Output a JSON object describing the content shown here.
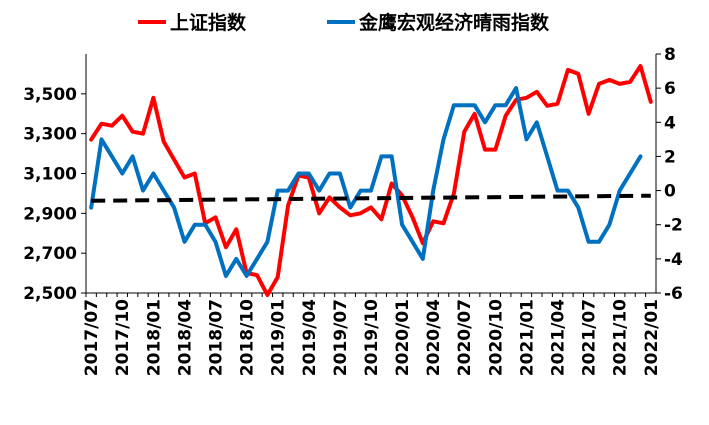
{
  "chart_data": {
    "type": "line",
    "legend_position": "top",
    "grid": false,
    "left_axis": {
      "ylim": [
        2500,
        3700
      ],
      "ticks": [
        "2,500",
        "2,700",
        "2,900",
        "3,100",
        "3,300",
        "3,500"
      ],
      "tick_values": [
        2500,
        2700,
        2900,
        3100,
        3300,
        3500
      ]
    },
    "right_axis": {
      "ylim": [
        -6,
        8
      ],
      "ticks": [
        "-6",
        "-4",
        "-2",
        "0",
        "2",
        "4",
        "6",
        "8"
      ],
      "tick_values": [
        -6,
        -4,
        -2,
        0,
        2,
        4,
        6,
        8
      ]
    },
    "x_tick_labels": [
      "2017/07",
      "2017/10",
      "2018/01",
      "2018/04",
      "2018/07",
      "2018/10",
      "2019/01",
      "2019/04",
      "2019/07",
      "2019/10",
      "2020/01",
      "2020/04",
      "2020/07",
      "2020/10",
      "2021/01",
      "2021/04",
      "2021/07",
      "2021/10",
      "2022/01"
    ],
    "series": [
      {
        "name": "上证指数",
        "color": "#FF0000",
        "axis": "left",
        "x": [
          "2017/07",
          "2017/08",
          "2017/09",
          "2017/10",
          "2017/11",
          "2017/12",
          "2018/01",
          "2018/02",
          "2018/03",
          "2018/04",
          "2018/05",
          "2018/06",
          "2018/07",
          "2018/08",
          "2018/09",
          "2018/10",
          "2018/11",
          "2018/12",
          "2019/01",
          "2019/02",
          "2019/03",
          "2019/04",
          "2019/05",
          "2019/06",
          "2019/07",
          "2019/08",
          "2019/09",
          "2019/10",
          "2019/11",
          "2019/12",
          "2020/01",
          "2020/02",
          "2020/03",
          "2020/04",
          "2020/05",
          "2020/06",
          "2020/07",
          "2020/08",
          "2020/09",
          "2020/10",
          "2020/11",
          "2020/12",
          "2021/01",
          "2021/02",
          "2021/03",
          "2021/04",
          "2021/05",
          "2021/06",
          "2021/07",
          "2021/08",
          "2021/09",
          "2021/10",
          "2021/11",
          "2021/12",
          "2022/01"
        ],
        "values": [
          3270,
          3350,
          3340,
          3390,
          3310,
          3300,
          3480,
          3260,
          3170,
          3080,
          3100,
          2850,
          2880,
          2730,
          2820,
          2600,
          2590,
          2490,
          2580,
          2940,
          3090,
          3080,
          2900,
          2980,
          2930,
          2890,
          2900,
          2930,
          2870,
          3050,
          2990,
          2880,
          2750,
          2860,
          2850,
          3000,
          3310,
          3400,
          3220,
          3220,
          3390,
          3470,
          3480,
          3510,
          3440,
          3450,
          3620,
          3600,
          3400,
          3550,
          3570,
          3550,
          3560,
          3640,
          3460
        ]
      },
      {
        "name": "金鹰宏观经济晴雨指数",
        "color": "#0070C0",
        "axis": "right",
        "x": [
          "2017/07",
          "2017/08",
          "2017/09",
          "2017/10",
          "2017/11",
          "2017/12",
          "2018/01",
          "2018/02",
          "2018/03",
          "2018/04",
          "2018/05",
          "2018/06",
          "2018/07",
          "2018/08",
          "2018/09",
          "2018/10",
          "2018/11",
          "2018/12",
          "2019/01",
          "2019/02",
          "2019/03",
          "2019/04",
          "2019/05",
          "2019/06",
          "2019/07",
          "2019/08",
          "2019/09",
          "2019/10",
          "2019/11",
          "2019/12",
          "2020/01",
          "2020/02",
          "2020/03",
          "2020/04",
          "2020/05",
          "2020/06",
          "2020/07",
          "2020/08",
          "2020/09",
          "2020/10",
          "2020/11",
          "2020/12",
          "2021/01",
          "2021/02",
          "2021/03",
          "2021/04",
          "2021/05",
          "2021/06",
          "2021/07",
          "2021/08",
          "2021/09",
          "2021/10",
          "2021/11",
          "2021/12"
        ],
        "values": [
          -1,
          3,
          2,
          1,
          2,
          0,
          1,
          0,
          -1,
          -3,
          -2,
          -2,
          -3,
          -5,
          -4,
          -5,
          -4,
          -3,
          0,
          0,
          1,
          1,
          0,
          1,
          1,
          -1,
          0,
          0,
          2,
          2,
          -2,
          -3,
          -4,
          0,
          3,
          5,
          5,
          5,
          4,
          5,
          5,
          6,
          3,
          4,
          2,
          0,
          0,
          -1,
          -3,
          -3,
          -2,
          0,
          1,
          2
        ]
      },
      {
        "name": "",
        "color": "#000000",
        "axis": "right",
        "style": "dashed",
        "x": [
          "2017/07",
          "2022/01"
        ],
        "values": [
          -0.6,
          -0.3
        ]
      }
    ]
  }
}
